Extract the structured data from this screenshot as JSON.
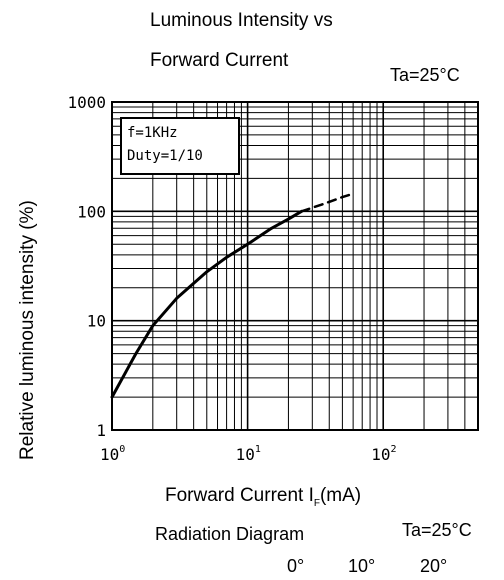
{
  "chart_data": {
    "type": "line",
    "title_line1": "Luminous Intensity vs",
    "title_line2": "Forward Current",
    "condition": "Ta=25°C",
    "ylabel": "Relative luminous intensity   (%)",
    "xlabel": "Forward Current   I",
    "xlabel_sub": "F",
    "xlabel_unit": "(mA)",
    "xscale": "log",
    "yscale": "log",
    "xlim": [
      1,
      500
    ],
    "ylim": [
      1,
      1000
    ],
    "grid": true,
    "y_ticks": [
      {
        "value": 1,
        "label": "1"
      },
      {
        "value": 10,
        "label": "10"
      },
      {
        "value": 100,
        "label": "100"
      },
      {
        "value": 1000,
        "label": "1000"
      }
    ],
    "x_ticks": [
      {
        "value": 1,
        "base": "10",
        "exp": "0"
      },
      {
        "value": 10,
        "base": "10",
        "exp": "1"
      },
      {
        "value": 100,
        "base": "10",
        "exp": "2"
      }
    ],
    "annotation": [
      "f=1KHz",
      "Duty=1/10"
    ],
    "series": [
      {
        "style": "solid",
        "x": [
          1,
          1.5,
          2,
          3,
          5,
          7,
          10,
          15,
          20,
          25
        ],
        "y": [
          2,
          5,
          9,
          16,
          28,
          38,
          50,
          70,
          85,
          100
        ]
      },
      {
        "style": "dashed",
        "x": [
          25,
          35,
          50,
          60
        ],
        "y": [
          100,
          115,
          135,
          145
        ]
      }
    ]
  },
  "footer": {
    "radiation_title": "Radiation Diagram",
    "radiation_condition": "Ta=25°C",
    "angles": [
      "0°",
      "10°",
      "20°"
    ]
  }
}
